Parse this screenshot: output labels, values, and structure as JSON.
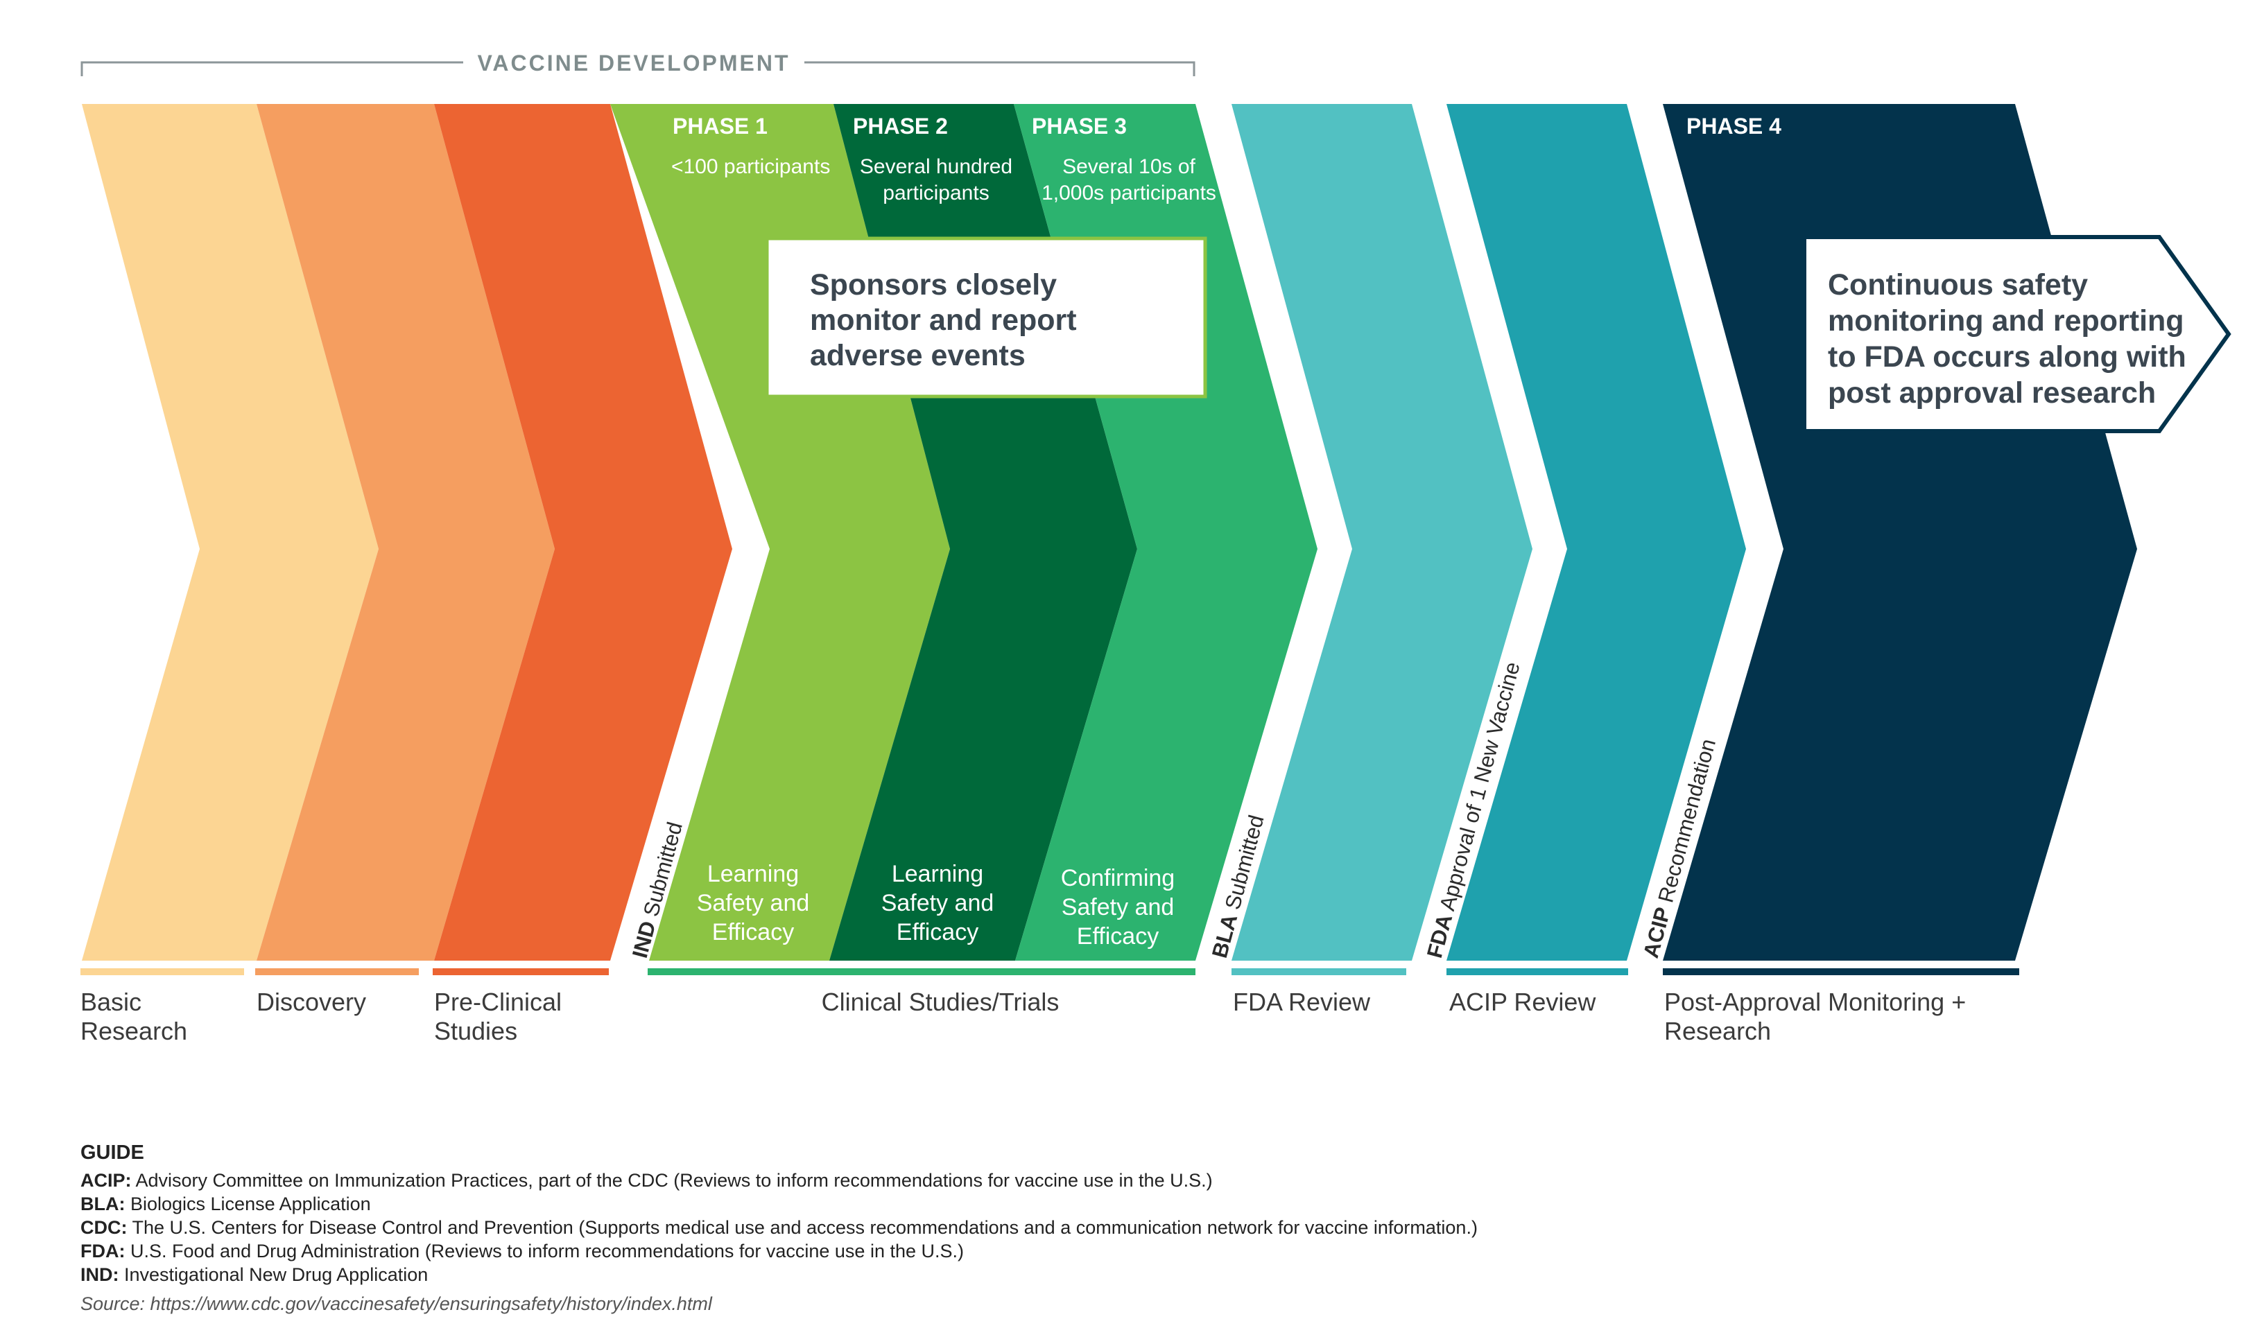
{
  "header": {
    "title": "VACCINE DEVELOPMENT"
  },
  "colors": {
    "basic_research": "#FCD593",
    "discovery": "#F59E60",
    "pre_clinical": "#EC6432",
    "phase1": "#8CC443",
    "phase2": "#00693A",
    "phase3": "#2CB36F",
    "fda_review": "#52C1C2",
    "acip_review": "#1FA1AD",
    "phase4": "#03334C",
    "header_gray": "#7F8C8D"
  },
  "phases": [
    {
      "title": "PHASE 1",
      "participants": "<100 participants",
      "desc": [
        "Learning",
        "Safety and",
        "Efficacy"
      ]
    },
    {
      "title": "PHASE 2",
      "participants": [
        "Several hundred",
        "participants"
      ],
      "desc": [
        "Learning",
        "Safety and",
        "Efficacy"
      ]
    },
    {
      "title": "PHASE 3",
      "participants": [
        "Several 10s of",
        "1,000s participants"
      ],
      "desc": [
        "Confirming",
        "Safety and",
        "Efficacy"
      ]
    },
    {
      "title": "PHASE 4"
    }
  ],
  "callouts": {
    "sponsors": [
      "Sponsors closely",
      "monitor and report",
      "adverse events"
    ],
    "continuous": [
      "Continuous safety",
      "monitoring and reporting",
      "to FDA occurs along with",
      "post approval research"
    ]
  },
  "milestones": {
    "ind": {
      "bold": "IND",
      "rest": " Submitted"
    },
    "bla": {
      "bold": "BLA",
      "rest": " Submitted"
    },
    "fda": {
      "bold": "FDA",
      "rest": " Approval of 1 New Vaccine"
    },
    "acip": {
      "bold": "ACIP",
      "rest": " Recommendation"
    }
  },
  "stages": {
    "basic_research": [
      "Basic",
      "Research"
    ],
    "discovery": "Discovery",
    "pre_clinical": [
      "Pre-Clinical",
      "Studies"
    ],
    "clinical": "Clinical Studies/Trials",
    "fda_review": "FDA Review",
    "acip_review": "ACIP Review",
    "post_approval": [
      "Post-Approval Monitoring +",
      "Research"
    ]
  },
  "guide": {
    "title": "GUIDE",
    "entries": [
      {
        "term": "ACIP:",
        "text": " Advisory Committee on Immunization Practices, part of the CDC (Reviews to inform recommendations for vaccine use in the U.S.)"
      },
      {
        "term": "BLA:",
        "text": " Biologics License Application"
      },
      {
        "term": "CDC:",
        "text": " The U.S. Centers for Disease Control and Prevention (Supports medical use and access recommendations and a communication network for vaccine information.)"
      },
      {
        "term": "FDA:",
        "text": " U.S. Food and Drug Administration (Reviews to inform recommendations for vaccine use in the U.S.)"
      },
      {
        "term": "IND:",
        "text": " Investigational New Drug Application"
      }
    ],
    "source": "Source: https://www.cdc.gov/vaccinesafety/ensuringsafety/history/index.html"
  }
}
